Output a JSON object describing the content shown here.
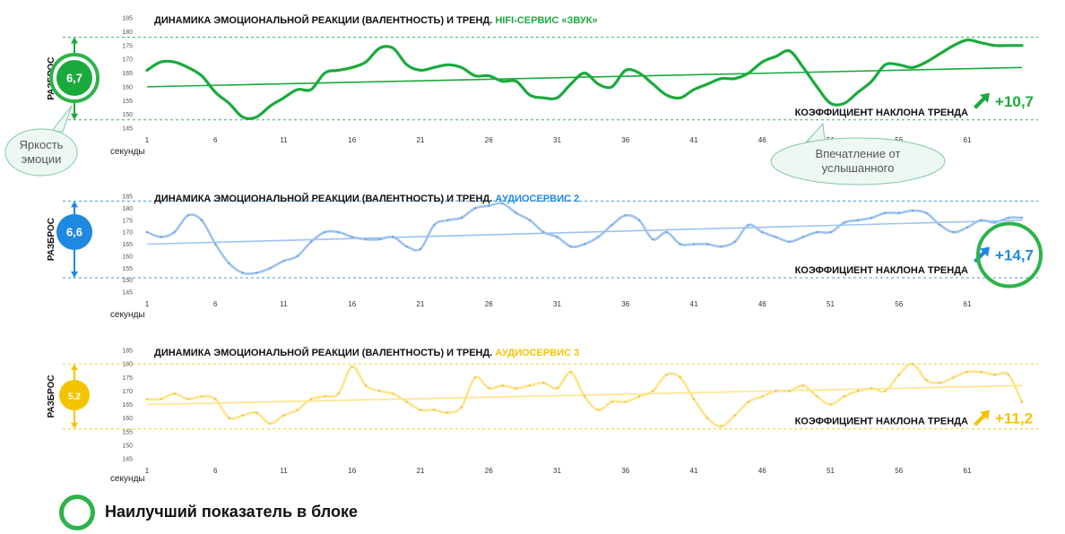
{
  "legend": {
    "best_label": "Наилучший показатель в блоке",
    "best_color": "#2db34a"
  },
  "callouts": {
    "brightness": "Яркость\nэмоции",
    "impression": "Впечатление от\nуслышанного"
  },
  "common": {
    "x_label": "секунды",
    "spread_label": "РАЗБРОС",
    "slope_label": "КОЭФФИЦИЕНТ НАКЛОНА ТРЕНДА",
    "title_prefix": "ДИНАМИКА ЭМОЦИОНАЛЬНОЙ РЕАКЦИИ (ВАЛЕНТНОСТЬ) И ТРЕНД. ",
    "x_ticks": [
      1,
      6,
      11,
      16,
      21,
      26,
      31,
      36,
      41,
      46,
      51,
      56,
      61
    ],
    "y_ticks": [
      145,
      150,
      155,
      160,
      165,
      170,
      175,
      180,
      185
    ]
  },
  "chart_data": [
    {
      "type": "line",
      "title": "ДИНАМИКА ЭМОЦИОНАЛЬНОЙ РЕАКЦИИ (ВАЛЕНТНОСТЬ) И ТРЕНД. HIFI-СЕРВИС «ЗВУК»",
      "title_highlight": "HIFI-СЕРВИС «ЗВУК»",
      "xlabel": "секунды",
      "ylim": [
        145,
        185
      ],
      "x": [
        1,
        2,
        3,
        4,
        5,
        6,
        7,
        8,
        9,
        10,
        11,
        12,
        13,
        14,
        15,
        16,
        17,
        18,
        19,
        20,
        21,
        22,
        23,
        24,
        25,
        26,
        27,
        28,
        29,
        30,
        31,
        32,
        33,
        34,
        35,
        36,
        37,
        38,
        39,
        40,
        41,
        42,
        43,
        44,
        45,
        46,
        47,
        48,
        49,
        50,
        51,
        52,
        53,
        54,
        55,
        56,
        57,
        58,
        59,
        60,
        61,
        62,
        63,
        64,
        65
      ],
      "series": [
        {
          "color": "#1aaa3c",
          "values": [
            166,
            169,
            169,
            167,
            164,
            158,
            154,
            149,
            149,
            153,
            156,
            159,
            159,
            165,
            166,
            167,
            169,
            174,
            174,
            168,
            166,
            167,
            168,
            167,
            164,
            164,
            162,
            162,
            157,
            156,
            156,
            161,
            165,
            161,
            160,
            166,
            165,
            161,
            157,
            156,
            159,
            161,
            163,
            163,
            165,
            169,
            171,
            173,
            167,
            160,
            154,
            154,
            158,
            162,
            168,
            168,
            167,
            169,
            172,
            175,
            177,
            176,
            175,
            175,
            175
          ]
        }
      ],
      "trend": {
        "start": 160,
        "end": 167
      },
      "spread": {
        "value": "6,7",
        "range": [
          148,
          178
        ]
      },
      "slope": "+10,7",
      "color": "#1aaa3c",
      "best_spread": true,
      "best_slope": false
    },
    {
      "type": "line",
      "title": "ДИНАМИКА ЭМОЦИОНАЛЬНОЙ РЕАКЦИИ (ВАЛЕНТНОСТЬ) И ТРЕНД. АУДИОСЕРВИС 2",
      "title_highlight": "АУДИОСЕРВИС 2",
      "xlabel": "секунды",
      "ylim": [
        145,
        185
      ],
      "x": [
        1,
        2,
        3,
        4,
        5,
        6,
        7,
        8,
        9,
        10,
        11,
        12,
        13,
        14,
        15,
        16,
        17,
        18,
        19,
        20,
        21,
        22,
        23,
        24,
        25,
        26,
        27,
        28,
        29,
        30,
        31,
        32,
        33,
        34,
        35,
        36,
        37,
        38,
        39,
        40,
        41,
        42,
        43,
        44,
        45,
        46,
        47,
        48,
        49,
        50,
        51,
        52,
        53,
        54,
        55,
        56,
        57,
        58,
        59,
        60,
        61,
        62,
        63,
        64,
        65
      ],
      "series": [
        {
          "color": "#9dc3f2",
          "values": [
            170,
            168,
            170,
            177,
            175,
            165,
            157,
            153,
            153,
            155,
            158,
            160,
            166,
            170,
            170,
            168,
            167,
            167,
            168,
            164,
            163,
            173,
            175,
            176,
            180,
            181,
            182,
            178,
            175,
            170,
            168,
            164,
            165,
            168,
            173,
            177,
            175,
            167,
            170,
            165,
            165,
            165,
            164,
            166,
            173,
            170,
            168,
            166,
            168,
            170,
            170,
            174,
            175,
            176,
            178,
            178,
            179,
            178,
            173,
            170,
            172,
            175,
            174,
            176,
            176
          ]
        }
      ],
      "trend": {
        "start": 165,
        "end": 175
      },
      "spread": {
        "value": "6,6",
        "range": [
          151,
          183
        ]
      },
      "slope": "+14,7",
      "color": "#1f88e0",
      "best_spread": false,
      "best_slope": true
    },
    {
      "type": "line",
      "title": "ДИНАМИКА ЭМОЦИОНАЛЬНОЙ РЕАКЦИИ (ВАЛЕНТНОСТЬ) И ТРЕНД. АУДИОСЕРВИС 3",
      "title_highlight": "АУДИОСЕРВИС 3",
      "xlabel": "секунды",
      "ylim": [
        145,
        185
      ],
      "x": [
        1,
        2,
        3,
        4,
        5,
        6,
        7,
        8,
        9,
        10,
        11,
        12,
        13,
        14,
        15,
        16,
        17,
        18,
        19,
        20,
        21,
        22,
        23,
        24,
        25,
        26,
        27,
        28,
        29,
        30,
        31,
        32,
        33,
        34,
        35,
        36,
        37,
        38,
        39,
        40,
        41,
        42,
        43,
        44,
        45,
        46,
        47,
        48,
        49,
        50,
        51,
        52,
        53,
        54,
        55,
        56,
        57,
        58,
        59,
        60,
        61,
        62,
        63,
        64,
        65
      ],
      "series": [
        {
          "color": "#ffe48a",
          "values": [
            167,
            167,
            169,
            167,
            168,
            167,
            160,
            161,
            162,
            158,
            161,
            163,
            167,
            168,
            169,
            179,
            172,
            170,
            169,
            166,
            163,
            163,
            162,
            164,
            175,
            171,
            172,
            171,
            172,
            173,
            171,
            177,
            168,
            163,
            166,
            166,
            168,
            170,
            176,
            175,
            167,
            160,
            157,
            161,
            166,
            168,
            170,
            170,
            172,
            168,
            165,
            168,
            170,
            171,
            170,
            176,
            180,
            174,
            173,
            175,
            177,
            177,
            176,
            176,
            166
          ]
        }
      ],
      "trend": {
        "start": 165,
        "end": 172
      },
      "spread": {
        "value": "5,2",
        "range": [
          156,
          180
        ]
      },
      "slope": "+11,2",
      "color": "#f5c400",
      "best_spread": false,
      "best_slope": false
    }
  ]
}
